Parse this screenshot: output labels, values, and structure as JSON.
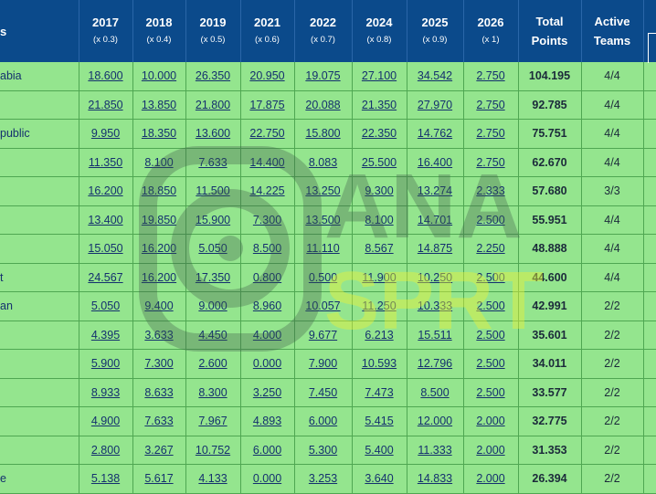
{
  "header": {
    "first_col": "s",
    "years": [
      {
        "year": "2017",
        "mult": "(x 0.3)"
      },
      {
        "year": "2018",
        "mult": "(x 0.4)"
      },
      {
        "year": "2019",
        "mult": "(x 0.5)"
      },
      {
        "year": "2021",
        "mult": "(x 0.6)"
      },
      {
        "year": "2022",
        "mult": "(x 0.7)"
      },
      {
        "year": "2024",
        "mult": "(x 0.8)"
      },
      {
        "year": "2025",
        "mult": "(x 0.9)"
      },
      {
        "year": "2026",
        "mult": "(x 1)"
      }
    ],
    "total_line1": "Total",
    "total_line2": "Points",
    "active_line1": "Active",
    "active_line2": "Teams"
  },
  "rows": [
    {
      "name": "abia",
      "values": [
        "18.600",
        "10.000",
        "26.350",
        "20.950",
        "19.075",
        "27.100",
        "34.542",
        "2.750"
      ],
      "total": "104.195",
      "active": "4/4"
    },
    {
      "name": "",
      "values": [
        "21.850",
        "13.850",
        "21.800",
        "17.875",
        "20.088",
        "21.350",
        "27.970",
        "2.750"
      ],
      "total": "92.785",
      "active": "4/4"
    },
    {
      "name": "public",
      "values": [
        "9.950",
        "18.350",
        "13.600",
        "22.750",
        "15.800",
        "22.350",
        "14.762",
        "2.750"
      ],
      "total": "75.751",
      "active": "4/4"
    },
    {
      "name": "",
      "values": [
        "11.350",
        "8.100",
        "7.633",
        "14.400",
        "8.083",
        "25.500",
        "16.400",
        "2.750"
      ],
      "total": "62.670",
      "active": "4/4"
    },
    {
      "name": "",
      "values": [
        "16.200",
        "18.850",
        "11.500",
        "14.225",
        "13.250",
        "9.300",
        "13.274",
        "2.333"
      ],
      "total": "57.680",
      "active": "3/3"
    },
    {
      "name": "",
      "values": [
        "13.400",
        "19.850",
        "15.900",
        "7.300",
        "13.500",
        "8.100",
        "14.701",
        "2.500"
      ],
      "total": "55.951",
      "active": "4/4"
    },
    {
      "name": "",
      "values": [
        "15.050",
        "16.200",
        "5.050",
        "8.500",
        "11.110",
        "8.567",
        "14.875",
        "2.250"
      ],
      "total": "48.888",
      "active": "4/4"
    },
    {
      "name": "t",
      "values": [
        "24.567",
        "16.200",
        "17.350",
        "0.800",
        "0.500",
        "11.900",
        "10.250",
        "2.500"
      ],
      "total": "44.600",
      "active": "4/4"
    },
    {
      "name": "an",
      "values": [
        "5.050",
        "9.400",
        "9.000",
        "8.960",
        "10.057",
        "11.250",
        "10.333",
        "2.500"
      ],
      "total": "42.991",
      "active": "2/2"
    },
    {
      "name": "",
      "values": [
        "4.395",
        "3.633",
        "4.450",
        "4.000",
        "9.677",
        "6.213",
        "15.511",
        "2.500"
      ],
      "total": "35.601",
      "active": "2/2"
    },
    {
      "name": "",
      "values": [
        "5.900",
        "7.300",
        "2.600",
        "0.000",
        "7.900",
        "10.593",
        "12.796",
        "2.500"
      ],
      "total": "34.011",
      "active": "2/2"
    },
    {
      "name": "",
      "values": [
        "8.933",
        "8.633",
        "8.300",
        "3.250",
        "7.450",
        "7.473",
        "8.500",
        "2.500"
      ],
      "total": "33.577",
      "active": "2/2"
    },
    {
      "name": "",
      "values": [
        "4.900",
        "7.633",
        "7.967",
        "4.893",
        "6.000",
        "5.415",
        "12.000",
        "2.000"
      ],
      "total": "32.775",
      "active": "2/2"
    },
    {
      "name": "",
      "values": [
        "2.800",
        "3.267",
        "10.752",
        "6.000",
        "5.300",
        "5.400",
        "11.333",
        "2.000"
      ],
      "total": "31.353",
      "active": "2/2"
    },
    {
      "name": "e",
      "values": [
        "5.138",
        "5.617",
        "4.133",
        "0.000",
        "3.253",
        "3.640",
        "14.833",
        "2.000"
      ],
      "total": "26.394",
      "active": "2/2"
    }
  ],
  "watermark": {
    "brand_top": "ANA",
    "brand_bottom": "SPRT"
  },
  "colors": {
    "header_bg": "#0b4a8b",
    "row_bg": "#94e58e",
    "link_text": "#14306e"
  }
}
